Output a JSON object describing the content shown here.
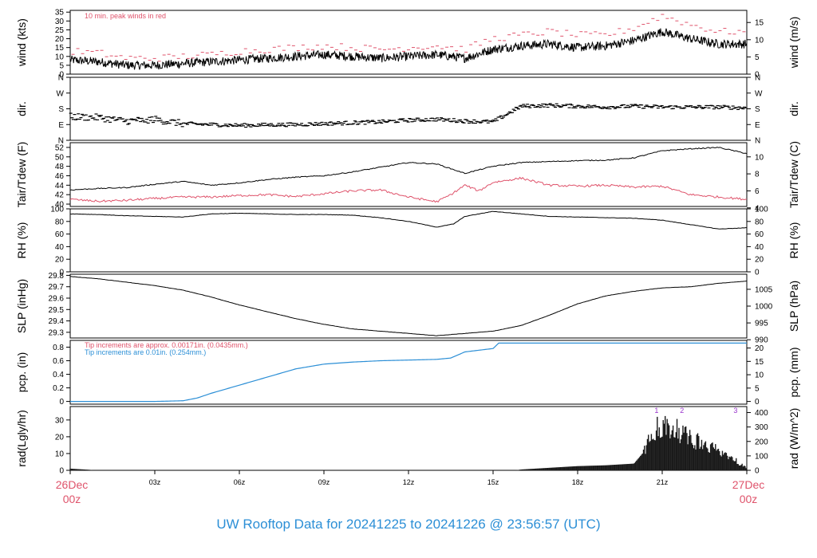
{
  "footer": {
    "title": "UW Rooftop Data for 20241225  to  20241226 @ 23:56:57  (UTC)"
  },
  "colors": {
    "line": "#000000",
    "dew": "#df536b",
    "precip": "#2c8fd6",
    "peak": "#df536b",
    "rad_label": "#9932cc",
    "date_label": "#df536b"
  },
  "x_axis": {
    "start_label": [
      "26Dec",
      "00z"
    ],
    "end_label": [
      "27Dec",
      "00z"
    ],
    "ticks": [
      "03z",
      "06z",
      "09z",
      "12z",
      "15z",
      "18z",
      "21z"
    ],
    "tick_hours": [
      3,
      6,
      9,
      12,
      15,
      18,
      21
    ],
    "range_hours": [
      0,
      24
    ]
  },
  "chart_data": [
    {
      "id": "wind",
      "type": "line",
      "ylabel": "wind (kts)",
      "ylabel_right": "wind (m/s)",
      "ylim": [
        0,
        36
      ],
      "ticks": [
        0,
        5,
        10,
        15,
        20,
        25,
        30,
        35
      ],
      "right_ticks": [
        0,
        5,
        10,
        15
      ],
      "right_factor": 0.514444,
      "annotation": "10 min. peak winds in red",
      "series": [
        {
          "role": "speed",
          "x": [
            0,
            1,
            2,
            3,
            4,
            5,
            6,
            7,
            8,
            9,
            10,
            11,
            12,
            13,
            14,
            15,
            16,
            17,
            18,
            19,
            20,
            21,
            22,
            23,
            24
          ],
          "values": [
            8,
            7,
            5,
            5,
            6,
            7,
            8,
            9,
            10,
            11,
            10,
            9,
            10,
            11,
            9,
            14,
            16,
            17,
            15,
            16,
            19,
            24,
            20,
            17,
            17
          ]
        },
        {
          "role": "peak",
          "x": [
            0,
            1,
            2,
            3,
            4,
            5,
            6,
            7,
            8,
            9,
            10,
            11,
            12,
            13,
            14,
            15,
            16,
            17,
            18,
            19,
            20,
            21,
            22,
            23,
            24
          ],
          "values": [
            13,
            12,
            9,
            9,
            10,
            11,
            13,
            14,
            15,
            16,
            15,
            14,
            15,
            16,
            14,
            20,
            22,
            24,
            22,
            22,
            26,
            33,
            28,
            24,
            24
          ]
        }
      ]
    },
    {
      "id": "dir",
      "type": "scatter",
      "ylabel": "dir.",
      "ylabel_right": "dir.",
      "ylim": [
        0,
        360
      ],
      "tick_values": [
        0,
        90,
        180,
        270,
        360
      ],
      "ticks": [
        "N",
        "E",
        "S",
        "W",
        "N"
      ],
      "series": [
        {
          "role": "direction",
          "x": [
            0,
            1,
            2,
            3,
            4,
            5,
            6,
            7,
            8,
            9,
            10,
            11,
            12,
            13,
            14,
            15,
            15.5,
            16,
            17,
            18,
            19,
            20,
            21,
            22,
            23,
            24
          ],
          "values": [
            135,
            130,
            110,
            120,
            95,
            90,
            85,
            88,
            90,
            95,
            100,
            105,
            115,
            120,
            110,
            105,
            150,
            195,
            200,
            195,
            190,
            195,
            190,
            190,
            190,
            185
          ]
        }
      ]
    },
    {
      "id": "temp",
      "type": "line",
      "ylabel": "Tair/Tdew (F)",
      "ylabel_right": "Tair/Tdew (C)",
      "ylim": [
        39.5,
        53
      ],
      "ticks": [
        40,
        42,
        44,
        46,
        48,
        50,
        52
      ],
      "right_ticks": [
        4,
        6,
        8,
        10
      ],
      "series": [
        {
          "role": "air",
          "x": [
            0,
            1,
            2,
            3,
            4,
            5,
            6,
            7,
            8,
            9,
            10,
            11,
            12,
            13,
            13.5,
            14,
            15,
            16,
            17,
            18,
            19,
            20,
            21,
            22,
            23,
            24
          ],
          "values": [
            43,
            43.3,
            43.5,
            44.2,
            44.8,
            44,
            44.5,
            45.2,
            45.7,
            46,
            46.8,
            47.8,
            48.8,
            48.5,
            47.5,
            46.5,
            48,
            48.8,
            49,
            49.2,
            49.3,
            49.8,
            51.3,
            51.7,
            52,
            50.7
          ]
        },
        {
          "role": "dew",
          "x": [
            0,
            1,
            2,
            3,
            4,
            5,
            6,
            7,
            8,
            9,
            10,
            11,
            12,
            12.5,
            13,
            13.5,
            14,
            14.5,
            15,
            16,
            17,
            18,
            19,
            20,
            21,
            22,
            23,
            24
          ],
          "values": [
            41,
            40.6,
            40.8,
            41.2,
            41.5,
            41.5,
            41.8,
            42,
            41.6,
            42.2,
            42.8,
            43,
            41.5,
            41,
            40.5,
            42,
            44,
            42.8,
            44.6,
            45.5,
            44,
            43.8,
            44,
            43.6,
            43.8,
            42,
            41.5,
            41
          ]
        }
      ]
    },
    {
      "id": "rh",
      "type": "line",
      "ylabel": "RH (%)",
      "ylabel_right": "RH (%)",
      "ylim": [
        0,
        100
      ],
      "ticks": [
        0,
        20,
        40,
        60,
        80,
        100
      ],
      "series": [
        {
          "role": "rh",
          "x": [
            0,
            1,
            2,
            3,
            4,
            5,
            6,
            7,
            8,
            9,
            10,
            11,
            12,
            13,
            13.6,
            14,
            15,
            16,
            17,
            18,
            19,
            20,
            21,
            22,
            23,
            24
          ],
          "values": [
            92,
            91,
            89,
            88,
            87,
            92,
            93,
            92,
            91,
            91,
            90,
            86,
            80,
            71,
            76,
            88,
            96,
            92,
            88,
            87,
            86,
            85,
            82,
            75,
            68,
            70
          ]
        }
      ]
    },
    {
      "id": "slp",
      "type": "line",
      "ylabel": "SLP (inHg)",
      "ylabel_right": "SLP (hPa)",
      "ylim": [
        29.25,
        29.81
      ],
      "ticks": [
        29.3,
        29.4,
        29.5,
        29.6,
        29.7,
        29.8
      ],
      "right_ticks": [
        990,
        995,
        1000,
        1005
      ],
      "right_offset": 0,
      "series": [
        {
          "role": "pressure",
          "x": [
            0,
            1,
            2,
            3,
            4,
            5,
            6,
            7,
            8,
            9,
            10,
            11,
            12,
            13,
            14,
            15,
            16,
            17,
            18,
            19,
            20,
            21,
            22,
            23,
            24
          ],
          "values": [
            29.79,
            29.77,
            29.74,
            29.71,
            29.67,
            29.61,
            29.54,
            29.48,
            29.42,
            29.37,
            29.33,
            29.31,
            29.29,
            29.27,
            29.29,
            29.31,
            29.36,
            29.45,
            29.55,
            29.62,
            29.66,
            29.69,
            29.7,
            29.73,
            29.75
          ]
        }
      ]
    },
    {
      "id": "pcp",
      "type": "line",
      "ylabel": "pcp. (in)",
      "ylabel_right": "pcp. (mm)",
      "ylim": [
        -0.04,
        0.9
      ],
      "ticks": [
        0.0,
        0.2,
        0.4,
        0.6,
        0.8
      ],
      "right_ticks": [
        0,
        5,
        10,
        15,
        20
      ],
      "annotations": [
        "Tip increments are approx. 0.00171in. (0.0435mm.)",
        "Tip increments are 0.01in. (0.254mm.)"
      ],
      "series": [
        {
          "role": "precip",
          "x": [
            0,
            1,
            2,
            3,
            4,
            4.5,
            5,
            6,
            7,
            8,
            9,
            10,
            11,
            12,
            13,
            13.5,
            14,
            15,
            15.2,
            16,
            17,
            18,
            19,
            20,
            21,
            22,
            23,
            24
          ],
          "values": [
            0,
            0,
            0,
            0,
            0.01,
            0.05,
            0.12,
            0.24,
            0.36,
            0.48,
            0.55,
            0.58,
            0.6,
            0.61,
            0.62,
            0.64,
            0.73,
            0.78,
            0.86,
            0.86,
            0.86,
            0.86,
            0.86,
            0.86,
            0.86,
            0.86,
            0.86,
            0.86
          ]
        }
      ]
    },
    {
      "id": "rad",
      "type": "area",
      "ylabel": "rad(Lgly/hr)",
      "ylabel_right": "rad (W/m^2)",
      "ylim": [
        0,
        38
      ],
      "ticks": [
        0,
        10,
        20,
        30
      ],
      "right_ticks": [
        0,
        100,
        200,
        300,
        400
      ],
      "markers": [
        {
          "label": "1",
          "x": 20.8
        },
        {
          "label": "2",
          "x": 21.7
        },
        {
          "label": "3",
          "x": 23.6
        }
      ],
      "series": [
        {
          "role": "radiation",
          "x": [
            0,
            0.7,
            0.8,
            15.8,
            16,
            17,
            18,
            19,
            20,
            20.3,
            20.6,
            21,
            21.5,
            22,
            23,
            24
          ],
          "values": [
            1,
            0.3,
            0,
            0,
            0.5,
            1.5,
            2.5,
            3,
            4,
            10,
            30,
            33,
            31,
            24,
            14,
            2
          ]
        }
      ]
    }
  ]
}
